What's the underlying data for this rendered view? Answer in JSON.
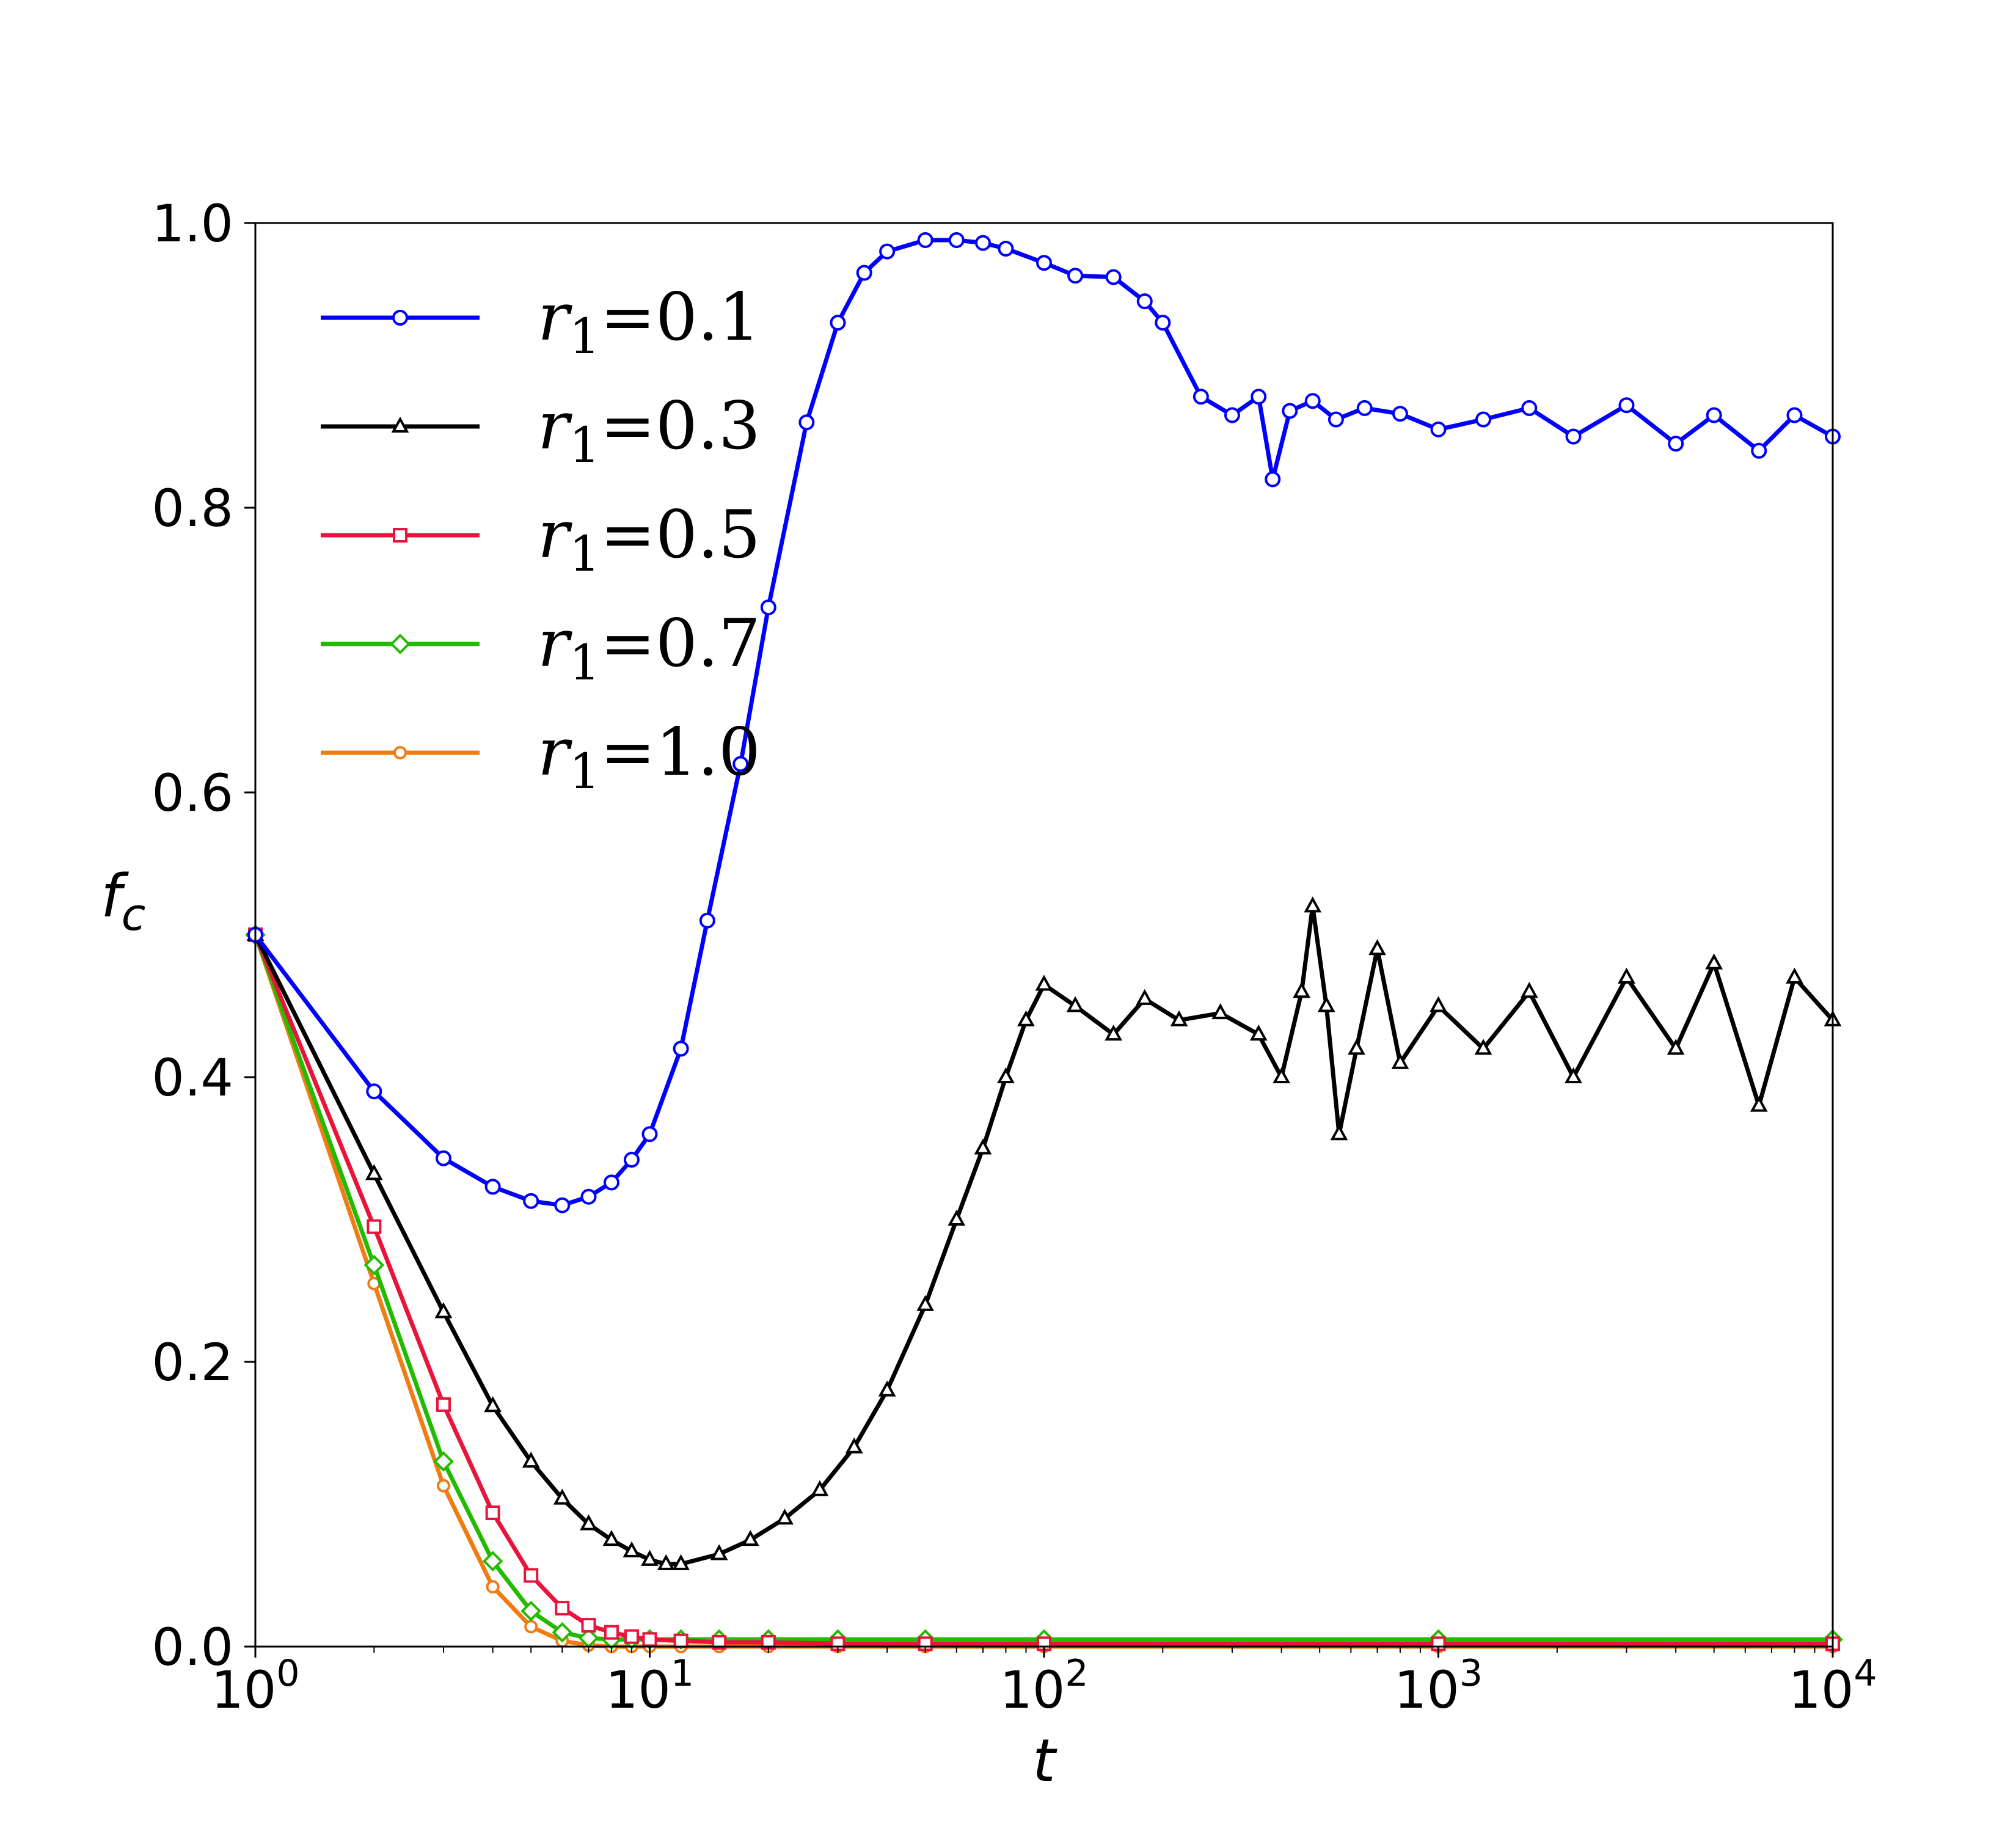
{
  "chart_data": {
    "type": "line",
    "title": "",
    "xlabel": "t",
    "ylabel": "f_c",
    "ylabel_main": "f",
    "ylabel_sub": "c",
    "x_scale": "log",
    "xlim": [
      1,
      10000
    ],
    "ylim": [
      0.0,
      1.0
    ],
    "grid": false,
    "legend_position": "upper-left",
    "x_ticks": [
      {
        "value": 1,
        "base": "10",
        "exp": "0"
      },
      {
        "value": 10,
        "base": "10",
        "exp": "1"
      },
      {
        "value": 100,
        "base": "10",
        "exp": "2"
      },
      {
        "value": 1000,
        "base": "10",
        "exp": "3"
      },
      {
        "value": 10000,
        "base": "10",
        "exp": "4"
      }
    ],
    "y_ticks": [
      {
        "value": 0.0,
        "label": "0.0"
      },
      {
        "value": 0.2,
        "label": "0.2"
      },
      {
        "value": 0.4,
        "label": "0.4"
      },
      {
        "value": 0.6,
        "label": "0.6"
      },
      {
        "value": 0.8,
        "label": "0.8"
      },
      {
        "value": 1.0,
        "label": "1.0"
      }
    ],
    "series": [
      {
        "name": "r1=0.1",
        "legend_var": "r",
        "legend_sub": "1",
        "legend_val": "=0.1",
        "color": "#0000ff",
        "marker": "circle",
        "x": [
          1,
          2,
          3,
          4,
          5,
          6,
          7,
          8,
          9,
          10,
          12,
          14,
          17,
          20,
          25,
          30,
          35,
          40,
          50,
          60,
          70,
          80,
          100,
          120,
          150,
          180,
          200,
          250,
          300,
          350,
          380,
          420,
          480,
          550,
          650,
          800,
          1000,
          1300,
          1700,
          2200,
          3000,
          4000,
          5000,
          6500,
          8000,
          10000
        ],
        "y": [
          0.5,
          0.39,
          0.343,
          0.323,
          0.313,
          0.31,
          0.316,
          0.326,
          0.342,
          0.36,
          0.42,
          0.51,
          0.62,
          0.73,
          0.86,
          0.93,
          0.965,
          0.98,
          0.988,
          0.988,
          0.986,
          0.982,
          0.972,
          0.963,
          0.962,
          0.945,
          0.93,
          0.878,
          0.865,
          0.878,
          0.82,
          0.868,
          0.875,
          0.862,
          0.87,
          0.866,
          0.855,
          0.862,
          0.87,
          0.85,
          0.872,
          0.845,
          0.865,
          0.84,
          0.865,
          0.85
        ]
      },
      {
        "name": "r1=0.3",
        "legend_var": "r",
        "legend_sub": "1",
        "legend_val": "=0.3",
        "color": "#000000",
        "marker": "triangle",
        "x": [
          1,
          2,
          3,
          4,
          5,
          6,
          7,
          8,
          9,
          10,
          11,
          12,
          15,
          18,
          22,
          27,
          33,
          40,
          50,
          60,
          70,
          80,
          90,
          100,
          120,
          150,
          180,
          220,
          280,
          350,
          400,
          450,
          480,
          520,
          560,
          620,
          700,
          800,
          1000,
          1300,
          1700,
          2200,
          3000,
          4000,
          5000,
          6500,
          8000,
          10000
        ],
        "y": [
          0.5,
          0.332,
          0.235,
          0.169,
          0.13,
          0.104,
          0.086,
          0.075,
          0.067,
          0.061,
          0.058,
          0.058,
          0.065,
          0.075,
          0.09,
          0.11,
          0.14,
          0.18,
          0.24,
          0.3,
          0.35,
          0.4,
          0.44,
          0.465,
          0.45,
          0.43,
          0.455,
          0.44,
          0.445,
          0.43,
          0.4,
          0.46,
          0.52,
          0.45,
          0.36,
          0.42,
          0.49,
          0.41,
          0.45,
          0.42,
          0.46,
          0.4,
          0.47,
          0.42,
          0.48,
          0.38,
          0.47,
          0.44
        ]
      },
      {
        "name": "r1=0.5",
        "legend_var": "r",
        "legend_sub": "1",
        "legend_val": "=0.5",
        "color": "#e8143c",
        "marker": "square",
        "x": [
          1,
          2,
          3,
          4,
          5,
          6,
          7,
          8,
          9,
          10,
          12,
          15,
          20,
          30,
          50,
          100,
          1000,
          10000
        ],
        "y": [
          0.5,
          0.295,
          0.17,
          0.094,
          0.05,
          0.027,
          0.015,
          0.01,
          0.007,
          0.005,
          0.004,
          0.003,
          0.003,
          0.002,
          0.002,
          0.002,
          0.002,
          0.002
        ]
      },
      {
        "name": "r1=0.7",
        "legend_var": "r",
        "legend_sub": "1",
        "legend_val": "=0.7",
        "color": "#22bb00",
        "marker": "diamond",
        "x": [
          1,
          2,
          3,
          4,
          5,
          6,
          7,
          8,
          9,
          10,
          12,
          15,
          20,
          30,
          50,
          100,
          1000,
          10000
        ],
        "y": [
          0.5,
          0.268,
          0.13,
          0.06,
          0.025,
          0.01,
          0.006,
          0.005,
          0.005,
          0.005,
          0.005,
          0.005,
          0.005,
          0.005,
          0.005,
          0.005,
          0.005,
          0.005
        ]
      },
      {
        "name": "r1=1.0",
        "legend_var": "r",
        "legend_sub": "1",
        "legend_val": "=1.0",
        "color": "#f07c12",
        "marker": "circle-small",
        "x": [
          1,
          2,
          3,
          4,
          5,
          6,
          7,
          8,
          9,
          10,
          12,
          15,
          20,
          30,
          50,
          100,
          1000,
          10000
        ],
        "y": [
          0.5,
          0.255,
          0.113,
          0.042,
          0.014,
          0.004,
          0.001,
          0.0,
          0.0,
          0.0,
          0.0,
          0.0,
          0.0,
          0.0,
          0.0,
          0.0,
          0.0,
          0.0
        ]
      }
    ]
  }
}
